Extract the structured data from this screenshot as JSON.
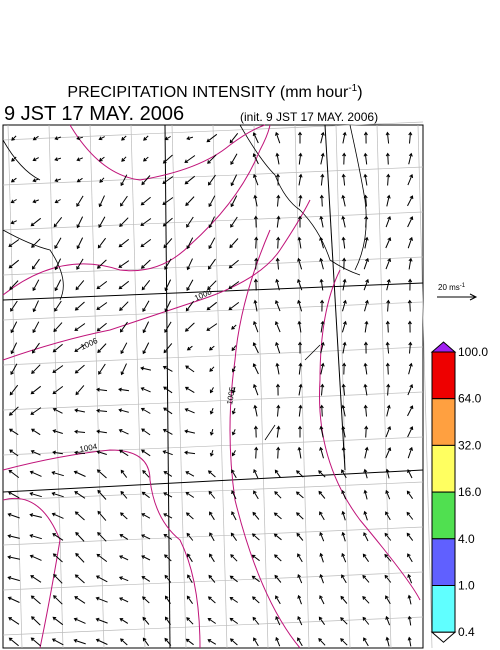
{
  "header": {
    "title": "PRECIPITATION INTENSITY (mm hour",
    "title_superscript": "-1",
    "title_close": ")",
    "valid_time": "9 JST 17 MAY. 2006",
    "init_time": "(init. 9 JST 17 MAY. 2006)"
  },
  "scale_arrow": {
    "label": "20 ms",
    "label_superscript": "-1"
  },
  "colorbar": {
    "labels": [
      "100.0",
      "64.0",
      "32.0",
      "16.0",
      "4.0",
      "1.0",
      "0.4"
    ],
    "colors": [
      "#a020f0",
      "#ee0000",
      "#ffa040",
      "#ffff60",
      "#50e050",
      "#6060ff",
      "#60ffff",
      "#ffffff"
    ]
  },
  "isobars": {
    "labels": [
      "1008",
      "1006",
      "1004",
      "1005"
    ]
  }
}
